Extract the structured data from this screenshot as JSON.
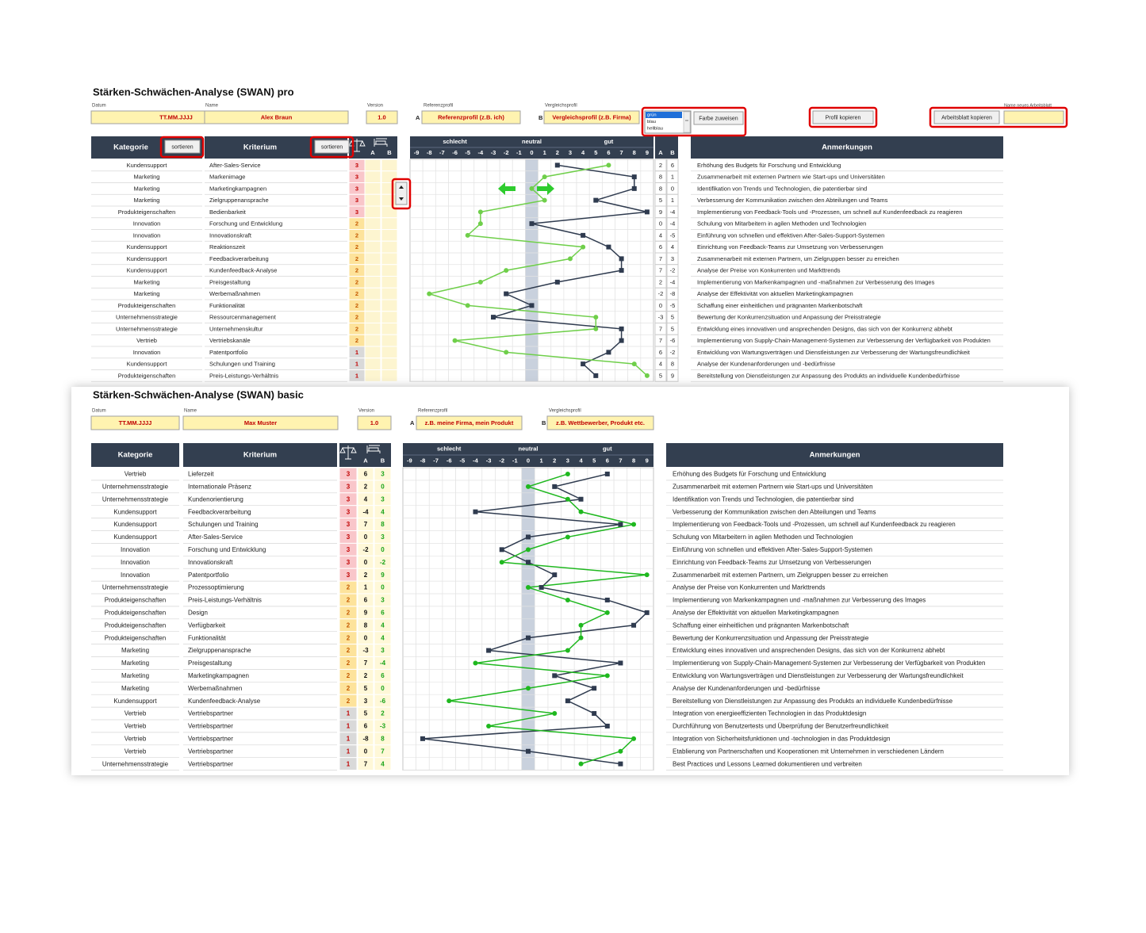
{
  "pro": {
    "title": "Stärken-Schwächen-Analyse (SWAN) pro",
    "fields": {
      "date_label": "Datum",
      "date": "TT.MM.JJJJ",
      "name_label": "Name",
      "name": "Alex Braun",
      "version_label": "Version",
      "version": "1.0",
      "ref_label": "Referenzprofil",
      "ref_letter": "A",
      "ref": "Referenzprofil (z.B. ich)",
      "cmp_label": "Vergleichsprofil",
      "cmp_letter": "B",
      "cmp": "Vergleichsprofil (z.B. Firma)",
      "colors": [
        "grün",
        "blau",
        "hellblau"
      ],
      "assign_color": "Farbe zuweisen",
      "copy_profile": "Profil kopieren",
      "new_sheet_label": "Name neues Arbeitsblatt",
      "copy_sheet": "Arbeitsblatt kopieren"
    },
    "columns": {
      "category": "Kategorie",
      "sort_category": "sortieren",
      "criterion": "Kriterium",
      "sort_criterion": "sortieren",
      "a": "A",
      "b": "B",
      "bad": "schlecht",
      "neutral": "neutral",
      "good": "gut",
      "a2": "A",
      "b2": "B",
      "notes": "Anmerkungen"
    },
    "chart": {
      "type": "line",
      "xlim": [
        -9.5,
        9.5
      ],
      "xticks": [
        -9,
        -8,
        -7,
        -6,
        -5,
        -4,
        -3,
        -2,
        -1,
        0,
        1,
        2,
        3,
        4,
        5,
        6,
        7,
        8,
        9
      ],
      "a_color": "#2f3b4f",
      "b_color": "#6fcf4a"
    },
    "weight_colors": {
      "3": [
        "#f9c6ca",
        "#c00000"
      ],
      "2": [
        "#fde39b",
        "#c55a00"
      ],
      "1": [
        "#d9d9d9",
        "#c00000"
      ]
    },
    "rows": [
      [
        "Kundensupport",
        "After-Sales-Service",
        3,
        2,
        6,
        "Erhöhung des Budgets für Forschung und Entwicklung"
      ],
      [
        "Marketing",
        "Markenimage",
        3,
        8,
        1,
        "Zusammenarbeit mit externen Partnern wie Start-ups und Universitäten"
      ],
      [
        "Marketing",
        "Marketingkampagnen",
        3,
        8,
        0,
        "Identifikation von Trends und Technologien, die patentierbar sind"
      ],
      [
        "Marketing",
        "Zielgruppenansprache",
        3,
        5,
        1,
        "Verbesserung der Kommunikation zwischen den Abteilungen und Teams"
      ],
      [
        "Produkteigenschaften",
        "Bedienbarkeit",
        3,
        9,
        -4,
        "Implementierung von Feedback-Tools und -Prozessen, um schnell auf Kundenfeedback zu reagieren"
      ],
      [
        "Innovation",
        "Forschung und Entwicklung",
        2,
        0,
        -4,
        "Schulung von Mitarbeitern in agilen Methoden und Technologien"
      ],
      [
        "Innovation",
        "Innovationskraft",
        2,
        4,
        -5,
        "Einführung von schnellen und effektiven After-Sales-Support-Systemen"
      ],
      [
        "Kundensupport",
        "Reaktionszeit",
        2,
        6,
        4,
        "Einrichtung von Feedback-Teams zur Umsetzung von Verbesserungen"
      ],
      [
        "Kundensupport",
        "Feedbackverarbeitung",
        2,
        7,
        3,
        "Zusammenarbeit mit externen Partnern, um Zielgruppen besser zu erreichen"
      ],
      [
        "Kundensupport",
        "Kundenfeedback-Analyse",
        2,
        7,
        -2,
        "Analyse der Preise von Konkurrenten und Markttrends"
      ],
      [
        "Marketing",
        "Preisgestaltung",
        2,
        2,
        -4,
        "Implementierung von Markenkampagnen und -maßnahmen zur Verbesserung des Images"
      ],
      [
        "Marketing",
        "Werbemaßnahmen",
        2,
        -2,
        -8,
        "Analyse der Effektivität von aktuellen Marketingkampagnen"
      ],
      [
        "Produkteigenschaften",
        "Funktionalität",
        2,
        0,
        -5,
        "Schaffung einer einheitlichen und prägnanten Markenbotschaft"
      ],
      [
        "Unternehmensstrategie",
        "Ressourcenmanagement",
        2,
        -3,
        5,
        "Bewertung der Konkurrenzsituation und Anpassung der Preisstrategie"
      ],
      [
        "Unternehmensstrategie",
        "Unternehmenskultur",
        2,
        7,
        5,
        "Entwicklung eines innovativen und ansprechenden Designs, das sich von der Konkurrenz abhebt"
      ],
      [
        "Vertrieb",
        "Vertriebskanäle",
        2,
        7,
        -6,
        "Implementierung von Supply-Chain-Management-Systemen zur Verbesserung der Verfügbarkeit von Produkten"
      ],
      [
        "Innovation",
        "Patentportfolio",
        1,
        6,
        -2,
        "Entwicklung von Wartungsverträgen und Dienstleistungen zur Verbesserung der Wartungsfreundlichkeit"
      ],
      [
        "Kundensupport",
        "Schulungen und Training",
        1,
        4,
        8,
        "Analyse der Kundenanforderungen und -bedürfnisse"
      ],
      [
        "Produkteigenschaften",
        "Preis-Leistungs-Verhältnis",
        1,
        5,
        9,
        "Bereitstellung von Dienstleistungen zur Anpassung des Produkts an individuelle Kundenbedürfnisse"
      ]
    ]
  },
  "basic": {
    "title": "Stärken-Schwächen-Analyse (SWAN) basic",
    "fields": {
      "date_label": "Datum",
      "date": "TT.MM.JJJJ",
      "name_label": "Name",
      "name": "Max Muster",
      "version_label": "Version",
      "version": "1.0",
      "ref_label": "Referenzprofil",
      "ref_letter": "A",
      "ref": "z.B. meine Firma, mein Produkt",
      "cmp_label": "Vergleichsprofil",
      "cmp_letter": "B",
      "cmp": "z.B. Wettbewerber, Produkt etc."
    },
    "columns": {
      "category": "Kategorie",
      "criterion": "Kriterium",
      "a": "A",
      "b": "B",
      "bad": "schlecht",
      "neutral": "neutral",
      "good": "gut",
      "notes": "Anmerkungen"
    },
    "chart": {
      "type": "line",
      "xlim": [
        -9.5,
        9.5
      ],
      "xticks": [
        -9,
        -8,
        -7,
        -6,
        -5,
        -4,
        -3,
        -2,
        -1,
        0,
        1,
        2,
        3,
        4,
        5,
        6,
        7,
        8,
        9
      ],
      "a_color": "#2f3b4f",
      "b_color": "#1fb81f"
    },
    "weight_colors": {
      "3": [
        "#f9c6ca",
        "#c00000"
      ],
      "2": [
        "#fde39b",
        "#c55a00"
      ],
      "1": [
        "#d9d9d9",
        "#c00000"
      ]
    },
    "rows": [
      [
        "Vertrieb",
        "Lieferzeit",
        3,
        6,
        3,
        "Erhöhung des Budgets für Forschung und Entwicklung"
      ],
      [
        "Unternehmensstrategie",
        "Internationale Präsenz",
        3,
        2,
        0,
        "Zusammenarbeit mit externen Partnern wie Start-ups und Universitäten"
      ],
      [
        "Unternehmensstrategie",
        "Kundenorientierung",
        3,
        4,
        3,
        "Identifikation von Trends und Technologien, die patentierbar sind"
      ],
      [
        "Kundensupport",
        "Feedbackverarbeitung",
        3,
        -4,
        4,
        "Verbesserung der Kommunikation zwischen den Abteilungen und Teams"
      ],
      [
        "Kundensupport",
        "Schulungen und Training",
        3,
        7,
        8,
        "Implementierung von Feedback-Tools und -Prozessen, um schnell auf Kundenfeedback zu reagieren"
      ],
      [
        "Kundensupport",
        "After-Sales-Service",
        3,
        0,
        3,
        "Schulung von Mitarbeitern in agilen Methoden und Technologien"
      ],
      [
        "Innovation",
        "Forschung und Entwicklung",
        3,
        -2,
        0,
        "Einführung von schnellen und effektiven After-Sales-Support-Systemen"
      ],
      [
        "Innovation",
        "Innovationskraft",
        3,
        0,
        -2,
        "Einrichtung von Feedback-Teams zur Umsetzung von Verbesserungen"
      ],
      [
        "Innovation",
        "Patentportfolio",
        3,
        2,
        9,
        "Zusammenarbeit mit externen Partnern, um Zielgruppen besser zu erreichen"
      ],
      [
        "Unternehmensstrategie",
        "Prozessoptimierung",
        2,
        1,
        0,
        "Analyse der Preise von Konkurrenten und Markttrends"
      ],
      [
        "Produkteigenschaften",
        "Preis-Leistungs-Verhältnis",
        2,
        6,
        3,
        "Implementierung von Markenkampagnen und -maßnahmen zur Verbesserung des Images"
      ],
      [
        "Produkteigenschaften",
        "Design",
        2,
        9,
        6,
        "Analyse der Effektivität von aktuellen Marketingkampagnen"
      ],
      [
        "Produkteigenschaften",
        "Verfügbarkeit",
        2,
        8,
        4,
        "Schaffung einer einheitlichen und prägnanten Markenbotschaft"
      ],
      [
        "Produkteigenschaften",
        "Funktionalität",
        2,
        0,
        4,
        "Bewertung der Konkurrenzsituation und Anpassung der Preisstrategie"
      ],
      [
        "Marketing",
        "Zielgruppenansprache",
        2,
        -3,
        3,
        "Entwicklung eines innovativen und ansprechenden Designs, das sich von der Konkurrenz abhebt"
      ],
      [
        "Marketing",
        "Preisgestaltung",
        2,
        7,
        -4,
        "Implementierung von Supply-Chain-Management-Systemen zur Verbesserung der Verfügbarkeit von Produkten"
      ],
      [
        "Marketing",
        "Marketingkampagnen",
        2,
        2,
        6,
        "Entwicklung von Wartungsverträgen und Dienstleistungen zur Verbesserung der Wartungsfreundlichkeit"
      ],
      [
        "Marketing",
        "Werbemaßnahmen",
        2,
        5,
        0,
        "Analyse der Kundenanforderungen und -bedürfnisse"
      ],
      [
        "Kundensupport",
        "Kundenfeedback-Analyse",
        2,
        3,
        -6,
        "Bereitstellung von Dienstleistungen zur Anpassung des Produkts an individuelle Kundenbedürfnisse"
      ],
      [
        "Vertrieb",
        "Vertriebspartner",
        1,
        5,
        2,
        "Integration von energieeffizienten Technologien in das Produktdesign"
      ],
      [
        "Vertrieb",
        "Vertriebspartner",
        1,
        6,
        -3,
        "Durchführung von Benutzertests und Überprüfung der Benutzerfreundlichkeit"
      ],
      [
        "Vertrieb",
        "Vertriebspartner",
        1,
        -8,
        8,
        "Integration von Sicherheitsfunktionen und -technologien in das Produktdesign"
      ],
      [
        "Vertrieb",
        "Vertriebspartner",
        1,
        0,
        7,
        "Etablierung von Partnerschaften und Kooperationen mit Unternehmen in verschiedenen Ländern"
      ],
      [
        "Unternehmensstrategie",
        "Vertriebspartner",
        1,
        7,
        4,
        "Best Practices und Lessons Learned dokumentieren und verbreiten"
      ]
    ]
  }
}
